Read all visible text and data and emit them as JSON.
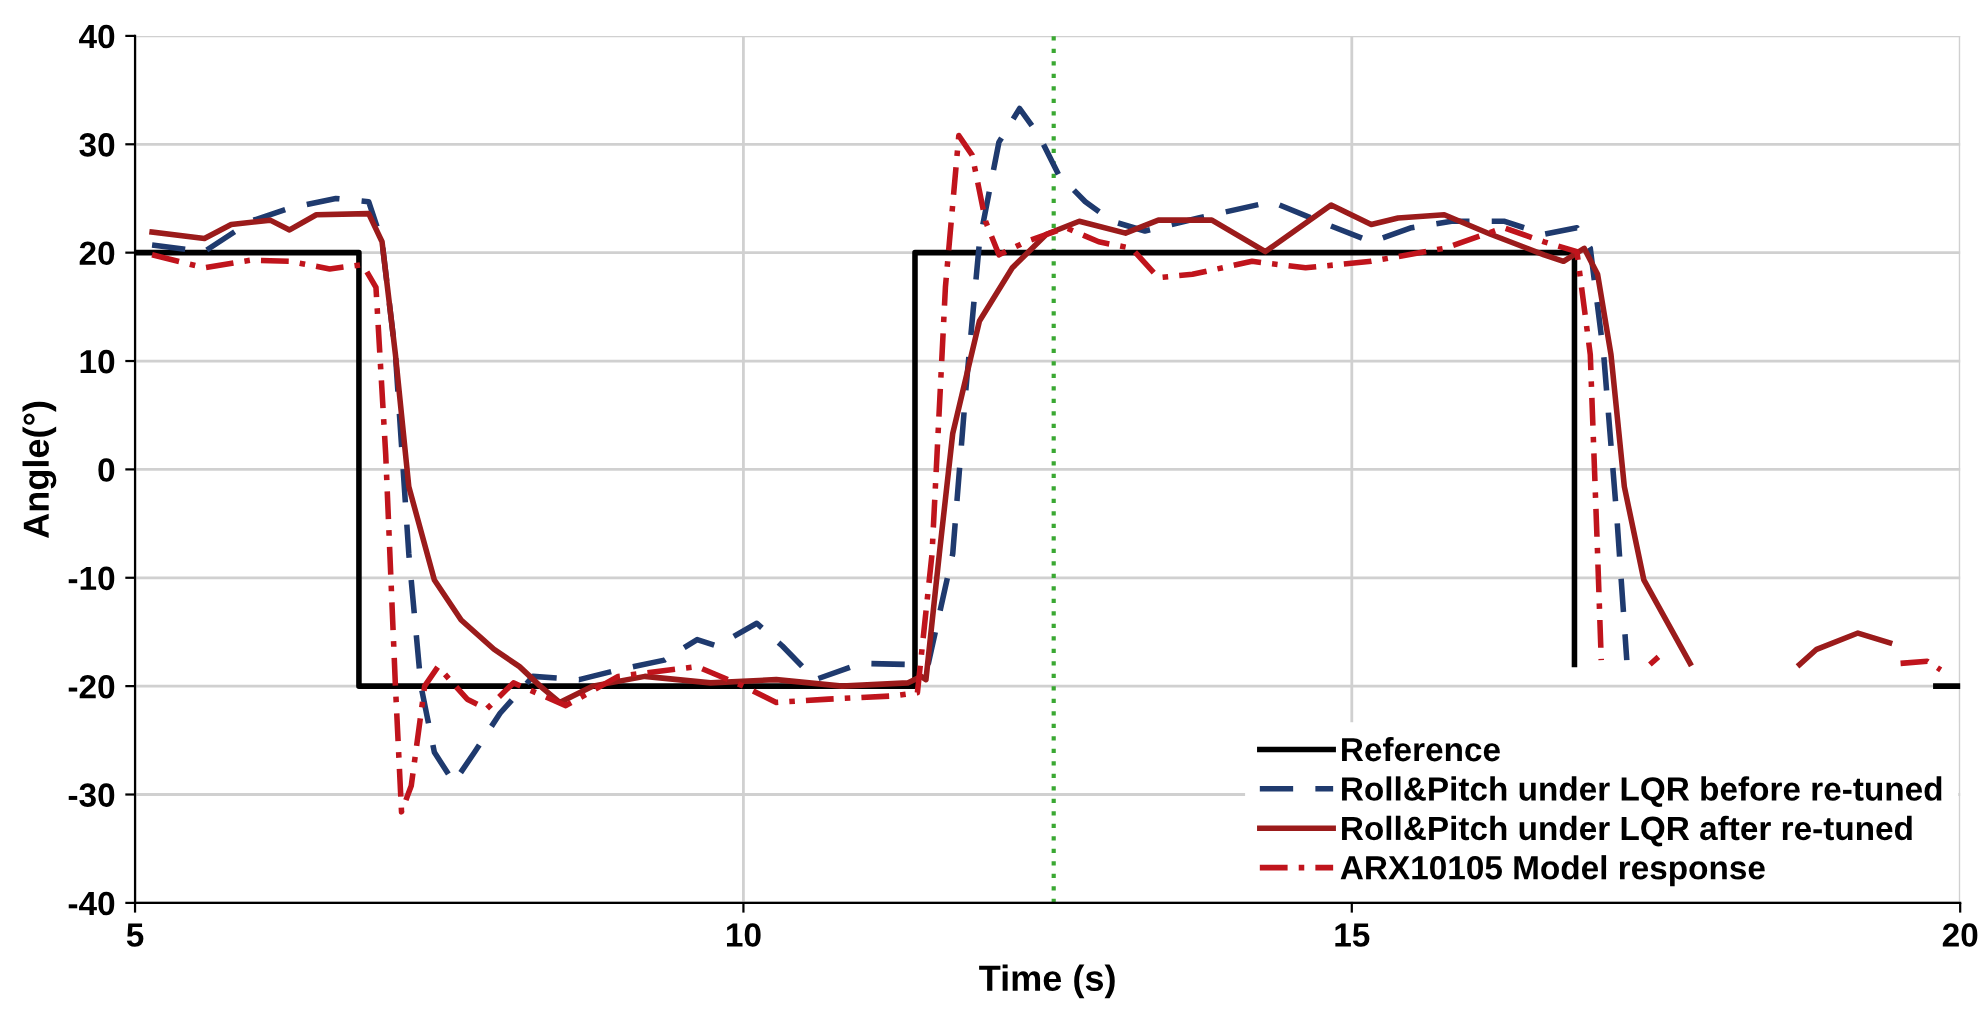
{
  "chart_data": {
    "type": "line",
    "xlabel": "Time (s)",
    "ylabel": "Angle(°)",
    "xlim": [
      5,
      20
    ],
    "ylim": [
      -40,
      40
    ],
    "xticks": [
      5,
      10,
      15,
      20
    ],
    "yticks": [
      -40,
      -30,
      -20,
      -10,
      0,
      10,
      20,
      30,
      40
    ],
    "grid": true,
    "legend": "bottom right",
    "ref_lines": [
      {
        "axis": "x",
        "value": 12.55,
        "color": "#3aa832",
        "line_style": "dotted"
      }
    ],
    "series": [
      {
        "name": "Reference",
        "color": "#000000",
        "line_style": "solid",
        "x": [
          5,
          6.84,
          6.84,
          11.41,
          11.41,
          16.83,
          16.83,
          null,
          19.8,
          20
        ],
        "values": [
          20,
          20,
          -20,
          -20,
          20,
          20,
          -18,
          null,
          -20,
          -20
        ]
      },
      {
        "name": "Roll&Pitch under LQR before re-tuned",
        "color": "#1f3a6e",
        "line_style": "dashed",
        "x": [
          5.14,
          5.57,
          5.95,
          6.27,
          6.65,
          6.92,
          7.03,
          7.14,
          7.25,
          7.35,
          7.46,
          7.62,
          7.79,
          8.0,
          8.27,
          8.65,
          8.97,
          9.35,
          9.62,
          9.78,
          10.11,
          10.32,
          10.59,
          10.97,
          11.35,
          11.52,
          11.72,
          11.83,
          11.94,
          12.1,
          12.27,
          12.43,
          12.59,
          12.81,
          13.03,
          13.3,
          13.74,
          14.34,
          14.73,
          15.16,
          15.49,
          15.82,
          16.25,
          16.58,
          16.85,
          16.96,
          17.07,
          17.18,
          17.26
        ],
        "values": [
          20.7,
          20.1,
          22.9,
          24.1,
          25.0,
          24.7,
          21,
          10.6,
          -7.8,
          -20,
          -26.1,
          -28.9,
          -26.1,
          -22.5,
          -19.1,
          -19.4,
          -18.5,
          -17.6,
          -15.7,
          -16.3,
          -14.2,
          -16.3,
          -19.4,
          -17.9,
          -18.0,
          -17.9,
          -7.8,
          7.6,
          21.0,
          30.2,
          33.3,
          30.8,
          27.2,
          24.7,
          22.9,
          22.0,
          23.2,
          24.7,
          22.9,
          21.0,
          22.3,
          22.9,
          22.9,
          21.7,
          22.3,
          20.4,
          10.6,
          -4.7,
          -17.6
        ]
      },
      {
        "name": "Roll&Pitch under LQR after re-tuned",
        "color": "#9b1b1b",
        "line_style": "solid",
        "x": [
          5.14,
          5.57,
          5.79,
          6.11,
          6.27,
          6.49,
          6.92,
          7.03,
          7.14,
          7.25,
          7.46,
          7.68,
          7.95,
          8.16,
          8.33,
          8.49,
          8.76,
          9.19,
          9.73,
          10.27,
          10.81,
          11.35,
          11.46,
          11.5,
          11.61,
          11.72,
          11.94,
          12.21,
          12.49,
          12.76,
          13.14,
          13.41,
          13.85,
          14.29,
          14.83,
          15.16,
          15.38,
          15.76,
          16.14,
          16.58,
          16.74,
          16.91,
          17.02,
          17.13,
          17.24,
          17.4,
          17.78,
          null,
          18.68,
          18.82,
          19.16,
          19.42
        ],
        "values": [
          21.9,
          21.3,
          22.6,
          23.0,
          22.1,
          23.5,
          23.6,
          21,
          10.6,
          -1.6,
          -10.2,
          -13.9,
          -16.6,
          -18.2,
          -20,
          -21.5,
          -20,
          -19.1,
          -19.7,
          -19.4,
          -20,
          -19.7,
          -19.1,
          -19.4,
          -7.8,
          3.3,
          13.7,
          18.6,
          21.7,
          22.9,
          21.8,
          23.0,
          23.0,
          20.1,
          24.4,
          22.6,
          23.2,
          23.5,
          21.7,
          19.8,
          19.2,
          20.4,
          18.0,
          10.6,
          -1.6,
          -10.2,
          -17.9,
          null,
          -18.0,
          -16.6,
          -15.1,
          -16.0
        ]
      },
      {
        "name": "ARX10105 Model response",
        "color": "#c0141c",
        "line_style": "dashdot",
        "x": [
          5.14,
          5.57,
          5.95,
          6.27,
          6.6,
          6.87,
          6.98,
          7.06,
          7.14,
          7.19,
          7.27,
          7.38,
          7.49,
          7.73,
          7.89,
          8.11,
          8.54,
          8.97,
          9.62,
          10.0,
          10.27,
          10.7,
          11.24,
          11.43,
          11.55,
          11.66,
          11.77,
          11.88,
          11.99,
          12.1,
          12.32,
          12.65,
          12.92,
          13.19,
          13.41,
          13.69,
          14.18,
          14.62,
          15.16,
          15.76,
          16.25,
          16.58,
          16.85,
          16.96,
          17.02,
          17.05,
          null,
          17.45,
          17.52,
          null,
          19.51,
          19.73,
          19.84
        ],
        "values": [
          19.8,
          18.6,
          19.3,
          19.2,
          18.5,
          18.9,
          16.8,
          1.4,
          -20,
          -31.6,
          -29.2,
          -20,
          -18.2,
          -21.2,
          -22.1,
          -19.7,
          -21.8,
          -19.1,
          -18.2,
          -20,
          -21.5,
          -21.2,
          -20.9,
          -20.6,
          -7.8,
          16.8,
          30.8,
          29.0,
          22.9,
          19.8,
          21.0,
          22.3,
          21.0,
          20.4,
          17.7,
          18.0,
          19.2,
          18.6,
          19.2,
          20.4,
          22.3,
          21.0,
          20.1,
          10.6,
          -7.8,
          -17.6,
          null,
          -18.0,
          -17.3,
          null,
          -17.9,
          -17.7,
          -18.5
        ]
      }
    ]
  }
}
